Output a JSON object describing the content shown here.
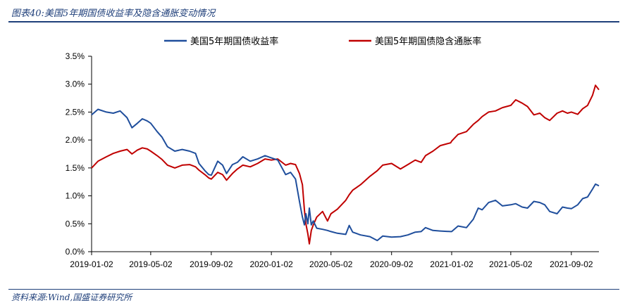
{
  "figure": {
    "title": "图表40:美国5年期国债收益率及隐含通胀变动情况",
    "source": "资料来源:Wind,国盛证券研究所"
  },
  "chart_data": {
    "type": "line",
    "title": "",
    "xlabel": "",
    "ylabel": "",
    "ylim": [
      0,
      3.5
    ],
    "y_unit": "%",
    "grid": false,
    "legend_position": "top",
    "x_ticks": [
      "2019-01-02",
      "2019-05-02",
      "2019-09-02",
      "2020-01-02",
      "2020-05-02",
      "2020-09-02",
      "2021-01-02",
      "2021-05-02",
      "2021-09-02"
    ],
    "y_ticks": [
      "0.0%",
      "0.5%",
      "1.0%",
      "1.5%",
      "2.0%",
      "2.5%",
      "3.0%",
      "3.5%"
    ],
    "series": [
      {
        "name": "美国5年期国债收益率",
        "color": "#1f4e9c",
        "points": [
          [
            "2019-01-02",
            2.45
          ],
          [
            "2019-01-15",
            2.55
          ],
          [
            "2019-02-01",
            2.5
          ],
          [
            "2019-02-15",
            2.48
          ],
          [
            "2019-03-01",
            2.52
          ],
          [
            "2019-03-15",
            2.4
          ],
          [
            "2019-03-25",
            2.22
          ],
          [
            "2019-04-05",
            2.3
          ],
          [
            "2019-04-15",
            2.38
          ],
          [
            "2019-04-25",
            2.34
          ],
          [
            "2019-05-02",
            2.3
          ],
          [
            "2019-05-15",
            2.15
          ],
          [
            "2019-05-25",
            2.05
          ],
          [
            "2019-06-05",
            1.88
          ],
          [
            "2019-06-20",
            1.8
          ],
          [
            "2019-07-05",
            1.83
          ],
          [
            "2019-07-20",
            1.8
          ],
          [
            "2019-08-01",
            1.76
          ],
          [
            "2019-08-08",
            1.58
          ],
          [
            "2019-08-20",
            1.45
          ],
          [
            "2019-08-28",
            1.38
          ],
          [
            "2019-09-02",
            1.37
          ],
          [
            "2019-09-15",
            1.62
          ],
          [
            "2019-09-25",
            1.55
          ],
          [
            "2019-10-03",
            1.4
          ],
          [
            "2019-10-15",
            1.56
          ],
          [
            "2019-10-25",
            1.6
          ],
          [
            "2019-11-05",
            1.7
          ],
          [
            "2019-11-20",
            1.62
          ],
          [
            "2019-12-05",
            1.66
          ],
          [
            "2019-12-20",
            1.72
          ],
          [
            "2020-01-02",
            1.68
          ],
          [
            "2020-01-15",
            1.64
          ],
          [
            "2020-01-31",
            1.38
          ],
          [
            "2020-02-10",
            1.42
          ],
          [
            "2020-02-20",
            1.3
          ],
          [
            "2020-02-28",
            0.9
          ],
          [
            "2020-03-05",
            0.62
          ],
          [
            "2020-03-09",
            0.48
          ],
          [
            "2020-03-12",
            0.68
          ],
          [
            "2020-03-16",
            0.5
          ],
          [
            "2020-03-19",
            0.78
          ],
          [
            "2020-03-23",
            0.48
          ],
          [
            "2020-03-27",
            0.55
          ],
          [
            "2020-04-03",
            0.42
          ],
          [
            "2020-04-15",
            0.4
          ],
          [
            "2020-04-25",
            0.38
          ],
          [
            "2020-05-02",
            0.36
          ],
          [
            "2020-05-15",
            0.33
          ],
          [
            "2020-06-01",
            0.31
          ],
          [
            "2020-06-08",
            0.47
          ],
          [
            "2020-06-15",
            0.35
          ],
          [
            "2020-07-01",
            0.3
          ],
          [
            "2020-07-20",
            0.27
          ],
          [
            "2020-08-04",
            0.2
          ],
          [
            "2020-08-15",
            0.28
          ],
          [
            "2020-09-02",
            0.26
          ],
          [
            "2020-09-20",
            0.27
          ],
          [
            "2020-10-05",
            0.3
          ],
          [
            "2020-10-20",
            0.35
          ],
          [
            "2020-11-01",
            0.36
          ],
          [
            "2020-11-10",
            0.43
          ],
          [
            "2020-11-25",
            0.38
          ],
          [
            "2020-12-10",
            0.37
          ],
          [
            "2020-12-31",
            0.36
          ],
          [
            "2021-01-02",
            0.36
          ],
          [
            "2021-01-15",
            0.46
          ],
          [
            "2021-02-01",
            0.43
          ],
          [
            "2021-02-15",
            0.58
          ],
          [
            "2021-02-25",
            0.78
          ],
          [
            "2021-03-05",
            0.75
          ],
          [
            "2021-03-18",
            0.88
          ],
          [
            "2021-04-01",
            0.92
          ],
          [
            "2021-04-15",
            0.82
          ],
          [
            "2021-05-02",
            0.84
          ],
          [
            "2021-05-12",
            0.86
          ],
          [
            "2021-05-25",
            0.8
          ],
          [
            "2021-06-05",
            0.78
          ],
          [
            "2021-06-18",
            0.9
          ],
          [
            "2021-06-30",
            0.88
          ],
          [
            "2021-07-10",
            0.84
          ],
          [
            "2021-07-20",
            0.72
          ],
          [
            "2021-08-04",
            0.68
          ],
          [
            "2021-08-15",
            0.8
          ],
          [
            "2021-08-25",
            0.78
          ],
          [
            "2021-09-02",
            0.77
          ],
          [
            "2021-09-15",
            0.84
          ],
          [
            "2021-09-25",
            0.95
          ],
          [
            "2021-10-05",
            0.98
          ],
          [
            "2021-10-15",
            1.12
          ],
          [
            "2021-10-21",
            1.21
          ],
          [
            "2021-10-28",
            1.18
          ]
        ]
      },
      {
        "name": "美国5年期国债隐含通胀率",
        "color": "#c00000",
        "points": [
          [
            "2019-01-02",
            1.5
          ],
          [
            "2019-01-15",
            1.62
          ],
          [
            "2019-02-01",
            1.7
          ],
          [
            "2019-02-15",
            1.76
          ],
          [
            "2019-03-01",
            1.8
          ],
          [
            "2019-03-15",
            1.83
          ],
          [
            "2019-03-25",
            1.75
          ],
          [
            "2019-04-05",
            1.82
          ],
          [
            "2019-04-15",
            1.86
          ],
          [
            "2019-04-25",
            1.84
          ],
          [
            "2019-05-02",
            1.8
          ],
          [
            "2019-05-15",
            1.72
          ],
          [
            "2019-05-25",
            1.65
          ],
          [
            "2019-06-05",
            1.55
          ],
          [
            "2019-06-20",
            1.5
          ],
          [
            "2019-07-05",
            1.55
          ],
          [
            "2019-07-20",
            1.56
          ],
          [
            "2019-08-01",
            1.52
          ],
          [
            "2019-08-08",
            1.46
          ],
          [
            "2019-08-20",
            1.38
          ],
          [
            "2019-08-28",
            1.32
          ],
          [
            "2019-09-02",
            1.3
          ],
          [
            "2019-09-15",
            1.42
          ],
          [
            "2019-09-25",
            1.38
          ],
          [
            "2019-10-03",
            1.28
          ],
          [
            "2019-10-15",
            1.4
          ],
          [
            "2019-10-25",
            1.48
          ],
          [
            "2019-11-05",
            1.55
          ],
          [
            "2019-11-20",
            1.52
          ],
          [
            "2019-12-05",
            1.58
          ],
          [
            "2019-12-20",
            1.66
          ],
          [
            "2020-01-02",
            1.64
          ],
          [
            "2020-01-15",
            1.66
          ],
          [
            "2020-01-31",
            1.55
          ],
          [
            "2020-02-10",
            1.58
          ],
          [
            "2020-02-20",
            1.56
          ],
          [
            "2020-02-28",
            1.4
          ],
          [
            "2020-03-05",
            1.2
          ],
          [
            "2020-03-09",
            0.75
          ],
          [
            "2020-03-12",
            0.5
          ],
          [
            "2020-03-16",
            0.32
          ],
          [
            "2020-03-19",
            0.14
          ],
          [
            "2020-03-23",
            0.38
          ],
          [
            "2020-03-27",
            0.48
          ],
          [
            "2020-04-03",
            0.62
          ],
          [
            "2020-04-15",
            0.72
          ],
          [
            "2020-04-25",
            0.55
          ],
          [
            "2020-05-02",
            0.68
          ],
          [
            "2020-05-15",
            0.76
          ],
          [
            "2020-06-01",
            0.92
          ],
          [
            "2020-06-08",
            1.02
          ],
          [
            "2020-06-15",
            1.1
          ],
          [
            "2020-07-01",
            1.2
          ],
          [
            "2020-07-20",
            1.35
          ],
          [
            "2020-08-04",
            1.45
          ],
          [
            "2020-08-15",
            1.55
          ],
          [
            "2020-09-02",
            1.58
          ],
          [
            "2020-09-20",
            1.48
          ],
          [
            "2020-10-05",
            1.56
          ],
          [
            "2020-10-20",
            1.64
          ],
          [
            "2020-11-01",
            1.6
          ],
          [
            "2020-11-10",
            1.72
          ],
          [
            "2020-11-25",
            1.8
          ],
          [
            "2020-12-10",
            1.9
          ],
          [
            "2020-12-31",
            1.95
          ],
          [
            "2021-01-02",
            1.98
          ],
          [
            "2021-01-15",
            2.1
          ],
          [
            "2021-02-01",
            2.15
          ],
          [
            "2021-02-15",
            2.28
          ],
          [
            "2021-02-25",
            2.35
          ],
          [
            "2021-03-05",
            2.42
          ],
          [
            "2021-03-18",
            2.5
          ],
          [
            "2021-04-01",
            2.52
          ],
          [
            "2021-04-15",
            2.58
          ],
          [
            "2021-05-02",
            2.62
          ],
          [
            "2021-05-12",
            2.72
          ],
          [
            "2021-05-25",
            2.66
          ],
          [
            "2021-06-05",
            2.6
          ],
          [
            "2021-06-18",
            2.45
          ],
          [
            "2021-06-30",
            2.48
          ],
          [
            "2021-07-10",
            2.4
          ],
          [
            "2021-07-20",
            2.35
          ],
          [
            "2021-08-04",
            2.48
          ],
          [
            "2021-08-15",
            2.52
          ],
          [
            "2021-08-25",
            2.48
          ],
          [
            "2021-09-02",
            2.5
          ],
          [
            "2021-09-15",
            2.46
          ],
          [
            "2021-09-25",
            2.56
          ],
          [
            "2021-10-05",
            2.62
          ],
          [
            "2021-10-15",
            2.8
          ],
          [
            "2021-10-21",
            2.98
          ],
          [
            "2021-10-28",
            2.9
          ]
        ]
      }
    ]
  }
}
